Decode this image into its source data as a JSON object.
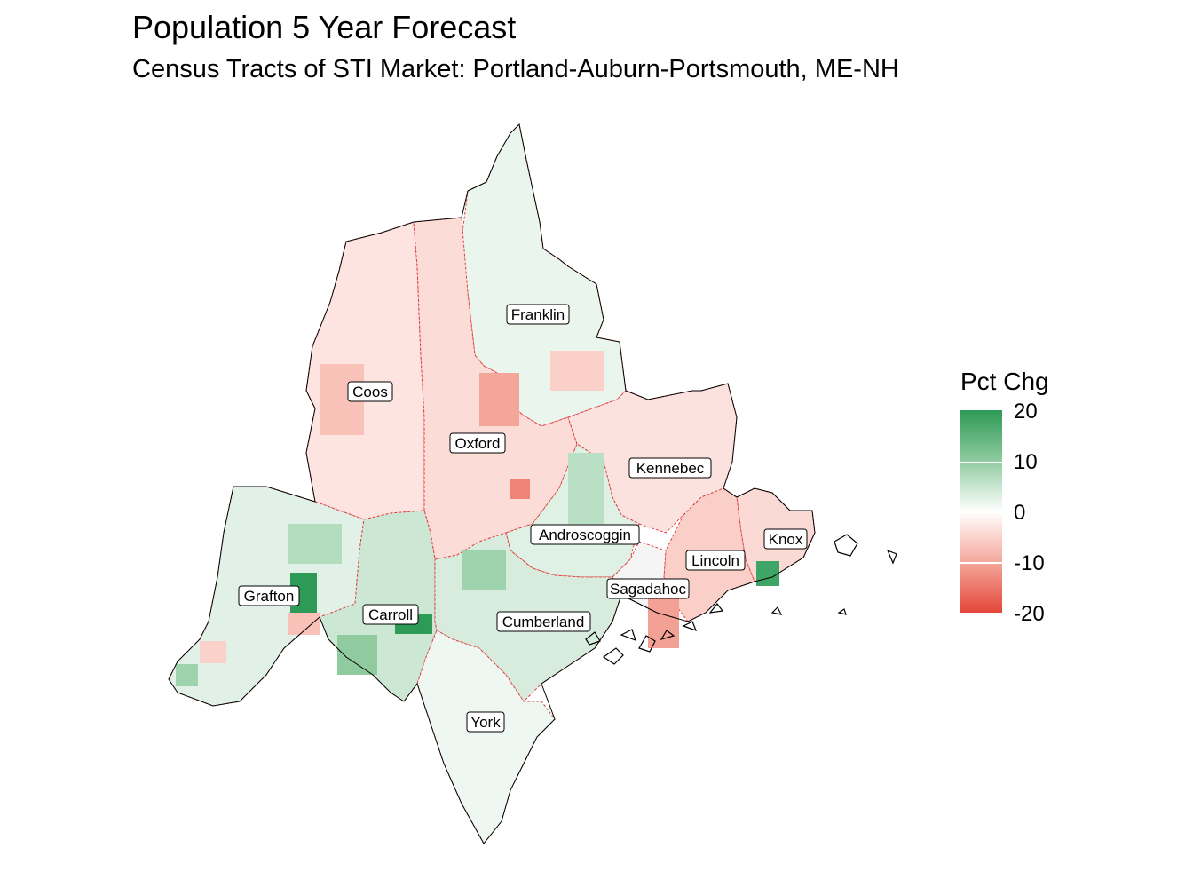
{
  "title": "Population 5 Year Forecast",
  "subtitle": "Census Tracts of STI Market: Portland-Auburn-Portsmouth, ME-NH",
  "legend": {
    "title": "Pct Chg",
    "ticks": [
      "20",
      "10",
      "0",
      "-10",
      "-20"
    ],
    "colors": {
      "high": "#2e9a57",
      "mid": "#ffffff",
      "low": "#e3473a"
    }
  },
  "counties": [
    {
      "name": "Franklin"
    },
    {
      "name": "Coos"
    },
    {
      "name": "Oxford"
    },
    {
      "name": "Kennebec"
    },
    {
      "name": "Androscoggin"
    },
    {
      "name": "Knox"
    },
    {
      "name": "Lincoln"
    },
    {
      "name": "Sagadahoc"
    },
    {
      "name": "Grafton"
    },
    {
      "name": "Carroll"
    },
    {
      "name": "Cumberland"
    },
    {
      "name": "York"
    }
  ]
}
